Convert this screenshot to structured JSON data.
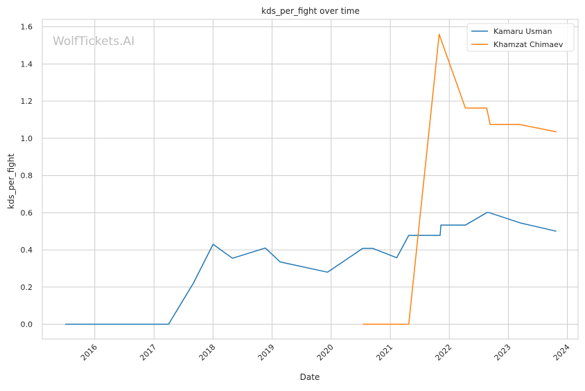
{
  "chart_data": {
    "type": "line",
    "title": "kds_per_fight over time",
    "xlabel": "Date",
    "ylabel": "kds_per_fight",
    "watermark": "WolfTickets.AI",
    "legend_position": "top-right",
    "grid": true,
    "x_ticks": [
      "2016",
      "2017",
      "2018",
      "2019",
      "2020",
      "2021",
      "2022",
      "2023",
      "2024"
    ],
    "y_ticks": [
      "0.0",
      "0.2",
      "0.4",
      "0.6",
      "0.8",
      "1.0",
      "1.2",
      "1.4",
      "1.6"
    ],
    "xlim": [
      "2015-02-10",
      "2024-03-07"
    ],
    "ylim": [
      -0.08,
      1.64
    ],
    "series": [
      {
        "name": "Kamaru Usman",
        "color": "#1f77b4",
        "points": [
          [
            "2015-07-01",
            0.0
          ],
          [
            "2017-04-01",
            0.0
          ],
          [
            "2017-09-01",
            0.22
          ],
          [
            "2018-01-01",
            0.43
          ],
          [
            "2018-05-01",
            0.355
          ],
          [
            "2018-11-20",
            0.41
          ],
          [
            "2019-02-20",
            0.335
          ],
          [
            "2019-12-10",
            0.28
          ],
          [
            "2020-07-15",
            0.408
          ],
          [
            "2020-09-15",
            0.408
          ],
          [
            "2021-02-10",
            0.358
          ],
          [
            "2021-04-25",
            0.478
          ],
          [
            "2021-11-05",
            0.478
          ],
          [
            "2021-11-10",
            0.533
          ],
          [
            "2022-04-10",
            0.533
          ],
          [
            "2022-08-20",
            0.6
          ],
          [
            "2022-09-05",
            0.6
          ],
          [
            "2023-03-15",
            0.545
          ],
          [
            "2023-10-25",
            0.5
          ]
        ]
      },
      {
        "name": "Khamzat Chimaev",
        "color": "#ff7f0e",
        "points": [
          [
            "2020-07-15",
            0.0
          ],
          [
            "2021-04-25",
            0.0
          ],
          [
            "2021-10-30",
            1.56
          ],
          [
            "2022-04-10",
            1.163
          ],
          [
            "2022-08-20",
            1.163
          ],
          [
            "2022-09-10",
            1.075
          ],
          [
            "2023-03-10",
            1.075
          ],
          [
            "2023-10-25",
            1.035
          ]
        ]
      }
    ]
  }
}
